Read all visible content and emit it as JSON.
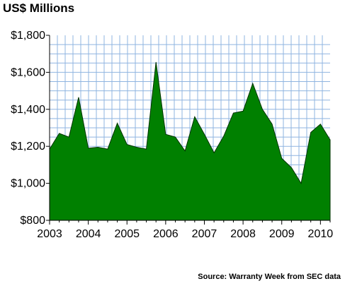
{
  "chart_data": {
    "type": "area",
    "title": "US$ Millions",
    "source": "Source: Warranty Week from SEC data",
    "xlabel": "",
    "ylabel": "",
    "ylim": [
      800,
      1800
    ],
    "y_ticks": [
      800,
      1000,
      1200,
      1400,
      1600,
      1800
    ],
    "y_tick_labels": [
      "$800",
      "$1,000",
      "$1,200",
      "$1,400",
      "$1,600",
      "$1,800"
    ],
    "x_tick_labels": [
      "2003",
      "2004",
      "2005",
      "2006",
      "2007",
      "2008",
      "2009",
      "2010"
    ],
    "x_range": [
      2003.0,
      2010.25
    ],
    "grid": true,
    "fill_color": "#008000",
    "grid_color": "#8fb4e0",
    "x": [
      2003.0,
      2003.25,
      2003.5,
      2003.75,
      2004.0,
      2004.25,
      2004.5,
      2004.75,
      2005.0,
      2005.25,
      2005.5,
      2005.75,
      2006.0,
      2006.25,
      2006.5,
      2006.75,
      2007.0,
      2007.25,
      2007.5,
      2007.75,
      2008.0,
      2008.25,
      2008.5,
      2008.75,
      2009.0,
      2009.25,
      2009.5,
      2009.75,
      2010.0,
      2010.25
    ],
    "values": [
      1185,
      1270,
      1250,
      1465,
      1190,
      1195,
      1185,
      1325,
      1210,
      1195,
      1185,
      1655,
      1265,
      1250,
      1175,
      1360,
      1265,
      1165,
      1255,
      1380,
      1390,
      1540,
      1400,
      1320,
      1135,
      1085,
      1000,
      1275,
      1320,
      1235
    ]
  }
}
